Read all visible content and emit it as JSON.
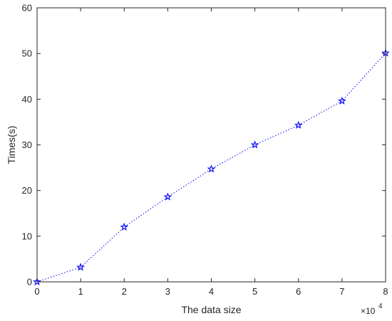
{
  "chart_data": {
    "type": "line",
    "title": "",
    "xlabel": "The data size",
    "ylabel": "Times(s)",
    "x_multiplier_base": "×10",
    "x_multiplier_exponent": "4",
    "xlim": [
      0,
      80000
    ],
    "ylim": [
      0,
      60
    ],
    "xticks": [
      0,
      10000,
      20000,
      30000,
      40000,
      50000,
      60000,
      70000,
      80000
    ],
    "xtick_labels": [
      "0",
      "1",
      "2",
      "3",
      "4",
      "5",
      "6",
      "7",
      "8"
    ],
    "yticks": [
      0,
      10,
      20,
      30,
      40,
      50,
      60
    ],
    "ytick_labels": [
      "0",
      "10",
      "20",
      "30",
      "40",
      "50",
      "60"
    ],
    "grid": false,
    "series": [
      {
        "marker": "pentagram",
        "line_style": "dotted",
        "color": "#0000ff",
        "x": [
          0,
          10000,
          20000,
          30000,
          40000,
          50000,
          60000,
          70000,
          80000
        ],
        "y": [
          0,
          3.2,
          12.0,
          18.6,
          24.7,
          30.0,
          34.3,
          39.6,
          50.1
        ]
      }
    ]
  }
}
